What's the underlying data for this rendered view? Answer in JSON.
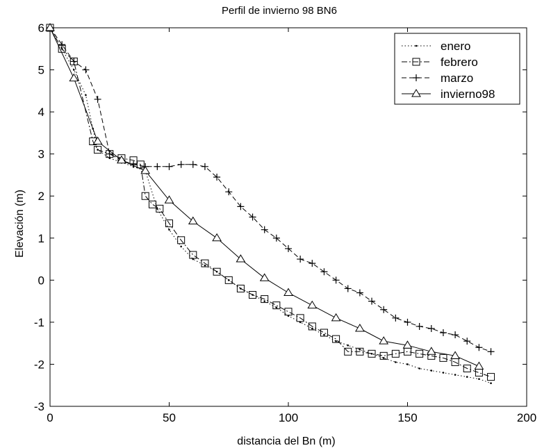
{
  "chart_data": {
    "type": "line",
    "title": "Perfil de invierno 98 BN6",
    "xlabel": "distancia del Bn (m)",
    "ylabel": "Elevación (m)",
    "xlim": [
      0,
      200
    ],
    "ylim": [
      -3,
      6
    ],
    "xticks": [
      0,
      50,
      100,
      150,
      200
    ],
    "yticks": [
      -3,
      -2,
      -1,
      0,
      1,
      2,
      3,
      4,
      5,
      6
    ],
    "grid": false,
    "legend_position": "top-right",
    "series": [
      {
        "name": "enero",
        "marker": "dot",
        "linestyle": "dotted",
        "x": [
          0,
          5,
          10,
          15,
          18,
          20,
          25,
          30,
          35,
          40,
          45,
          50,
          55,
          60,
          65,
          70,
          75,
          80,
          85,
          90,
          95,
          100,
          105,
          110,
          115,
          120,
          125,
          130,
          135,
          140,
          145,
          150,
          155,
          160,
          165,
          170,
          175,
          180,
          185
        ],
        "y": [
          6.0,
          5.5,
          5.0,
          4.4,
          3.6,
          3.1,
          2.9,
          2.8,
          2.7,
          2.6,
          1.7,
          1.2,
          0.8,
          0.5,
          0.35,
          0.2,
          0.0,
          -0.2,
          -0.35,
          -0.5,
          -0.65,
          -0.85,
          -1.0,
          -1.15,
          -1.3,
          -1.45,
          -1.55,
          -1.65,
          -1.75,
          -1.85,
          -1.95,
          -2.0,
          -2.1,
          -2.15,
          -2.2,
          -2.25,
          -2.3,
          -2.35,
          -2.45
        ]
      },
      {
        "name": "febrero",
        "marker": "square",
        "linestyle": "dashdot",
        "x": [
          0,
          5,
          10,
          18,
          20,
          25,
          30,
          35,
          38,
          40,
          43,
          46,
          50,
          55,
          60,
          65,
          70,
          75,
          80,
          85,
          90,
          95,
          100,
          105,
          110,
          115,
          120,
          125,
          130,
          135,
          140,
          145,
          150,
          155,
          160,
          165,
          170,
          175,
          180,
          185
        ],
        "y": [
          6.0,
          5.5,
          5.2,
          3.3,
          3.1,
          3.0,
          2.9,
          2.85,
          2.75,
          2.0,
          1.8,
          1.7,
          1.35,
          0.95,
          0.6,
          0.4,
          0.2,
          0.0,
          -0.2,
          -0.35,
          -0.45,
          -0.6,
          -0.75,
          -0.9,
          -1.1,
          -1.25,
          -1.4,
          -1.7,
          -1.7,
          -1.75,
          -1.8,
          -1.75,
          -1.7,
          -1.75,
          -1.8,
          -1.85,
          -1.95,
          -2.1,
          -2.2,
          -2.3
        ]
      },
      {
        "name": "marzo",
        "marker": "plus",
        "linestyle": "dashed",
        "x": [
          0,
          5,
          10,
          15,
          20,
          25,
          30,
          35,
          40,
          45,
          50,
          55,
          60,
          65,
          70,
          75,
          80,
          85,
          90,
          95,
          100,
          105,
          110,
          115,
          120,
          125,
          130,
          135,
          140,
          145,
          150,
          155,
          160,
          165,
          170,
          175,
          180,
          185
        ],
        "y": [
          6.0,
          5.6,
          5.2,
          5.0,
          4.3,
          3.0,
          2.85,
          2.75,
          2.7,
          2.7,
          2.7,
          2.75,
          2.75,
          2.7,
          2.45,
          2.1,
          1.75,
          1.5,
          1.2,
          1.0,
          0.75,
          0.5,
          0.4,
          0.2,
          0.0,
          -0.2,
          -0.3,
          -0.5,
          -0.7,
          -0.9,
          -1.0,
          -1.1,
          -1.15,
          -1.25,
          -1.3,
          -1.45,
          -1.6,
          -1.7
        ]
      },
      {
        "name": "invierno98",
        "marker": "triangle",
        "linestyle": "solid",
        "x": [
          0,
          10,
          20,
          30,
          40,
          50,
          60,
          70,
          80,
          90,
          100,
          110,
          120,
          130,
          140,
          150,
          160,
          170,
          180
        ],
        "y": [
          6.0,
          4.8,
          3.3,
          2.85,
          2.6,
          1.9,
          1.4,
          1.0,
          0.5,
          0.05,
          -0.3,
          -0.6,
          -0.9,
          -1.15,
          -1.45,
          -1.55,
          -1.7,
          -1.8,
          -2.05
        ]
      }
    ]
  }
}
